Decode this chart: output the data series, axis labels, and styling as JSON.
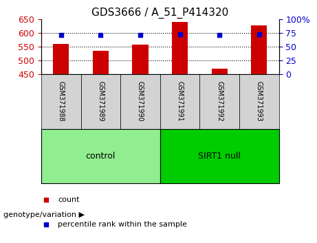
{
  "title": "GDS3666 / A_51_P414320",
  "samples": [
    "GSM371988",
    "GSM371989",
    "GSM371990",
    "GSM371991",
    "GSM371992",
    "GSM371993"
  ],
  "counts": [
    560,
    535,
    558,
    641,
    470,
    628
  ],
  "percentile_ranks": [
    72,
    71,
    72,
    73,
    71,
    73
  ],
  "groups": [
    {
      "label": "control",
      "samples": [
        0,
        1,
        2
      ],
      "color": "#90EE90"
    },
    {
      "label": "SIRT1 null",
      "samples": [
        3,
        4,
        5
      ],
      "color": "#00CC00"
    }
  ],
  "bar_color": "#CC0000",
  "dot_color": "#0000CC",
  "left_ylim": [
    450,
    650
  ],
  "left_yticks": [
    450,
    500,
    550,
    600,
    650
  ],
  "right_ylim": [
    0,
    100
  ],
  "right_yticks": [
    0,
    25,
    50,
    75,
    100
  ],
  "right_yticklabels": [
    "0",
    "25",
    "50",
    "75",
    "100%"
  ],
  "grid_values": [
    500,
    550,
    600
  ],
  "bar_width": 0.4,
  "legend_items": [
    {
      "label": "count",
      "color": "#CC0000",
      "marker": "s"
    },
    {
      "label": "percentile rank within the sample",
      "color": "#0000CC",
      "marker": "s"
    }
  ],
  "genotype_label": "genotype/variation",
  "background_color": "#ffffff",
  "plot_bg_color": "#ffffff",
  "label_box_color": "#d3d3d3",
  "group_box_color_control": "#90EE90",
  "group_box_color_sirt1": "#00CC00",
  "title_fontsize": 11,
  "tick_fontsize": 9,
  "label_fontsize": 9
}
